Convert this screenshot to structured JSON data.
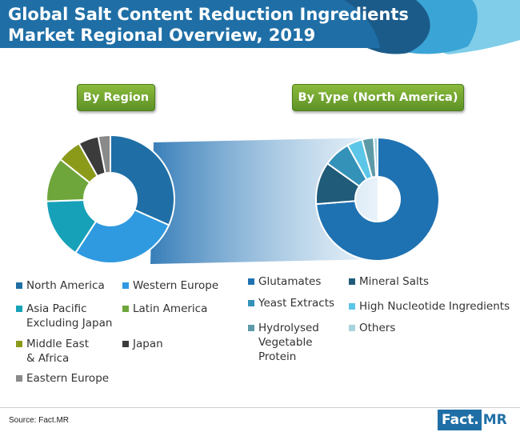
{
  "header": {
    "title": "Global Salt Content Reduction Ingredients Market Regional Overview, 2019",
    "colors": {
      "bar": "#1f6fa6",
      "wave_light": "#7fcde9",
      "wave_mid": "#3ba4d6",
      "wave_dark": "#1b5b8a"
    }
  },
  "labels": {
    "by_region": "By Region",
    "by_type": "By Type (North America)"
  },
  "chart_data": [
    {
      "type": "pie",
      "title": "By Region",
      "donut": true,
      "categories": [
        "North America",
        "Western Europe",
        "Asia Pacific\nExcluding Japan",
        "Latin America",
        "Middle East\n& Africa",
        "Japan",
        "Eastern Europe"
      ],
      "values": [
        31,
        27,
        15,
        11,
        6,
        5,
        3
      ],
      "colors": [
        "#1f6fa6",
        "#2f9ae0",
        "#17a1b8",
        "#6fa63c",
        "#8c9a1a",
        "#3b3b3b",
        "#8a8a8a"
      ],
      "legend": "bottom"
    },
    {
      "type": "pie",
      "title": "By Type (North America)",
      "donut": true,
      "categories": [
        "Glutamates",
        "Mineral Salts",
        "Yeast Extracts",
        "High Nucleotide Ingredients",
        "Hydrolysed\nVegetable\nProtein",
        "Others"
      ],
      "values": [
        73,
        11,
        7,
        4,
        3,
        1
      ],
      "colors": [
        "#1f72b2",
        "#205b7a",
        "#3492b8",
        "#5cc6e8",
        "#5d9aa8",
        "#a7d3de"
      ],
      "legend": "bottom"
    }
  ],
  "footer": {
    "source": "Source: Fact.MR",
    "logo_part1": "Fact.",
    "logo_part2": "MR"
  }
}
